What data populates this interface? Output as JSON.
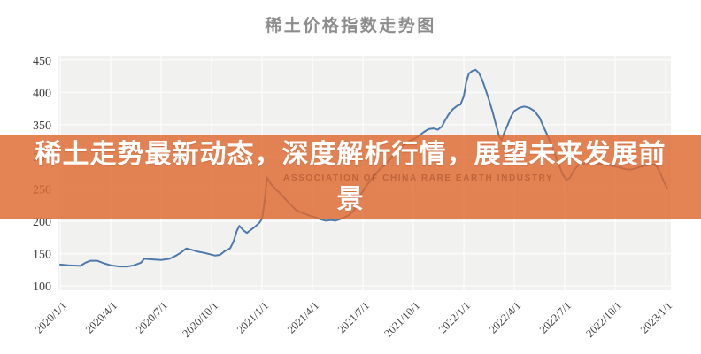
{
  "chart": {
    "title": "稀土价格指数走势图"
  },
  "banner": {
    "line1": "稀土走势最新动态，深度解析行情，展望未来发展前",
    "line2": "景",
    "watermark": "ASSOCIATION OF CHINA RARE EARTH INDUSTRY",
    "background_color": "#DE6930",
    "text_color": "#FFFFFF"
  },
  "chart_data": {
    "type": "line",
    "title": "稀土价格指数走势图",
    "xlabel": "",
    "ylabel": "",
    "x_unit": "months_since_2020_01",
    "x_tick_labels": [
      "2020/1/1",
      "2020/4/1",
      "2020/7/1",
      "2020/10/1",
      "2021/1/1",
      "2021/4/1",
      "2021/7/1",
      "2021/10/1",
      "2022/1/1",
      "2022/4/1",
      "2022/7/1",
      "2022/10/1",
      "2023/1/1"
    ],
    "x_ticks_months": [
      0,
      3,
      6,
      9,
      12,
      15,
      18,
      21,
      24,
      27,
      30,
      33,
      36
    ],
    "y_ticks": [
      100,
      150,
      200,
      250,
      300,
      350,
      400,
      450
    ],
    "ylim": [
      100,
      450
    ],
    "grid": true,
    "plot_bg_color": "#F1F1F0",
    "grid_color": "#FBFBFA",
    "series": [
      {
        "name": "稀土价格指数",
        "color": "#4D79AC",
        "points": [
          [
            0,
            133
          ],
          [
            0.5,
            132
          ],
          [
            1.2,
            131
          ],
          [
            1.5,
            136
          ],
          [
            1.8,
            139
          ],
          [
            2.2,
            139
          ],
          [
            2.6,
            135
          ],
          [
            3,
            132
          ],
          [
            3.5,
            130
          ],
          [
            4,
            130
          ],
          [
            4.4,
            132
          ],
          [
            4.8,
            136
          ],
          [
            5,
            142
          ],
          [
            5.5,
            141
          ],
          [
            6,
            140
          ],
          [
            6.5,
            142
          ],
          [
            6.9,
            147
          ],
          [
            7.2,
            152
          ],
          [
            7.5,
            158
          ],
          [
            7.8,
            156
          ],
          [
            8.2,
            153
          ],
          [
            8.6,
            151
          ],
          [
            8.9,
            149
          ],
          [
            9.2,
            147
          ],
          [
            9.5,
            148
          ],
          [
            9.8,
            154
          ],
          [
            10.1,
            158
          ],
          [
            10.3,
            168
          ],
          [
            10.5,
            185
          ],
          [
            10.65,
            193
          ],
          [
            10.9,
            186
          ],
          [
            11.1,
            182
          ],
          [
            11.35,
            187
          ],
          [
            11.6,
            192
          ],
          [
            11.85,
            198
          ],
          [
            12,
            204
          ],
          [
            12.15,
            230
          ],
          [
            12.3,
            268
          ],
          [
            12.5,
            259
          ],
          [
            12.8,
            250
          ],
          [
            13.1,
            243
          ],
          [
            13.4,
            234
          ],
          [
            13.7,
            226
          ],
          [
            14,
            218
          ],
          [
            14.4,
            213
          ],
          [
            14.8,
            209
          ],
          [
            15.2,
            206
          ],
          [
            15.5,
            203
          ],
          [
            15.8,
            201
          ],
          [
            16.1,
            202
          ],
          [
            16.35,
            201
          ],
          [
            16.6,
            203
          ],
          [
            16.9,
            206
          ],
          [
            17.2,
            210
          ],
          [
            17.5,
            218
          ],
          [
            17.7,
            232
          ],
          [
            17.9,
            243
          ],
          [
            18.2,
            255
          ],
          [
            18.5,
            265
          ],
          [
            18.8,
            275
          ],
          [
            19.1,
            283
          ],
          [
            19.5,
            293
          ],
          [
            19.8,
            302
          ],
          [
            20.1,
            311
          ],
          [
            20.5,
            319
          ],
          [
            20.8,
            325
          ],
          [
            21.2,
            330
          ],
          [
            21.6,
            338
          ],
          [
            21.9,
            343
          ],
          [
            22.2,
            344
          ],
          [
            22.45,
            342
          ],
          [
            22.7,
            347
          ],
          [
            22.9,
            357
          ],
          [
            23.1,
            366
          ],
          [
            23.35,
            374
          ],
          [
            23.6,
            379
          ],
          [
            23.8,
            381
          ],
          [
            24,
            394
          ],
          [
            24.15,
            416
          ],
          [
            24.3,
            429
          ],
          [
            24.5,
            433
          ],
          [
            24.7,
            435
          ],
          [
            24.9,
            430
          ],
          [
            25.1,
            419
          ],
          [
            25.3,
            404
          ],
          [
            25.5,
            388
          ],
          [
            25.7,
            371
          ],
          [
            25.9,
            351
          ],
          [
            26.1,
            332
          ],
          [
            26.25,
            326
          ],
          [
            26.4,
            337
          ],
          [
            26.6,
            349
          ],
          [
            26.8,
            362
          ],
          [
            27,
            371
          ],
          [
            27.3,
            376
          ],
          [
            27.6,
            378
          ],
          [
            27.9,
            376
          ],
          [
            28.2,
            371
          ],
          [
            28.5,
            361
          ],
          [
            28.75,
            346
          ],
          [
            29,
            332
          ],
          [
            29.3,
            313
          ],
          [
            29.6,
            291
          ],
          [
            29.9,
            272
          ],
          [
            30.1,
            264
          ],
          [
            30.3,
            267
          ],
          [
            30.55,
            279
          ],
          [
            30.8,
            287
          ],
          [
            31.2,
            290
          ],
          [
            31.6,
            290
          ],
          [
            32,
            289
          ],
          [
            32.4,
            288
          ],
          [
            32.8,
            286
          ],
          [
            33.2,
            284
          ],
          [
            33.6,
            281
          ],
          [
            33.9,
            280
          ],
          [
            34.2,
            282
          ],
          [
            34.6,
            285
          ],
          [
            35,
            288
          ],
          [
            35.3,
            288
          ],
          [
            35.5,
            284
          ],
          [
            35.7,
            274
          ],
          [
            35.9,
            261
          ],
          [
            36.1,
            251
          ]
        ]
      }
    ],
    "legend": null
  }
}
